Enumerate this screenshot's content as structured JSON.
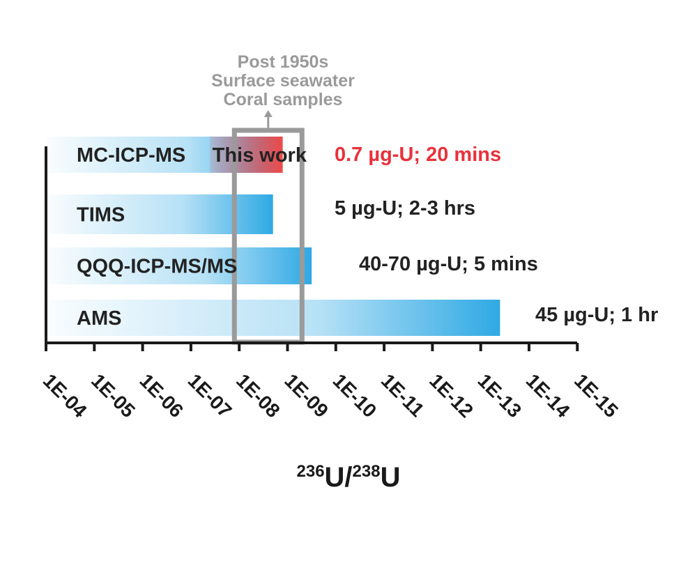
{
  "chart_data": {
    "type": "bar",
    "orientation": "horizontal",
    "x_axis": {
      "scale": "log10-exponent",
      "range": [
        -4,
        -15
      ],
      "tick_labels": [
        "1E-04",
        "1E-05",
        "1E-06",
        "1E-07",
        "1E-08",
        "1E-09",
        "1E-10",
        "1E-11",
        "1E-12",
        "1E-13",
        "1E-14",
        "1E-15"
      ],
      "xlabel": {
        "sup1": "236",
        "main1": "U/",
        "sup2": "238",
        "main2": "U"
      }
    },
    "series": [
      {
        "name": "MC-ICP-MS",
        "range_exponent": [
          -4,
          -8.9
        ],
        "label": "0.7 µg-U; 20 mins",
        "label_color": "#e8313b",
        "highlight": true,
        "highlight_label": "This work",
        "highlight_range_exponent": [
          -7.4,
          -8.9
        ]
      },
      {
        "name": "TIMS",
        "range_exponent": [
          -4,
          -8.7
        ],
        "label": "5 µg-U; 2-3 hrs",
        "label_color": "#222222"
      },
      {
        "name": "QQQ-ICP-MS/MS",
        "range_exponent": [
          -4,
          -9.5
        ],
        "label": "40-70 µg-U; 5 mins",
        "label_color": "#222222"
      },
      {
        "name": "AMS",
        "range_exponent": [
          -4,
          -13.4
        ],
        "label": "45 µg-U; 1 hr",
        "label_color": "#222222"
      }
    ],
    "annotation": {
      "lines": [
        "Post 1950s",
        "Surface seawater",
        "Coral samples"
      ],
      "box_range_exponent": [
        -7.9,
        -9.3
      ],
      "color": "#9a9a9a"
    },
    "colors": {
      "bar": "#2fa9e4",
      "highlight": "#ee4a4a",
      "axis": "#1a1a1a"
    }
  }
}
